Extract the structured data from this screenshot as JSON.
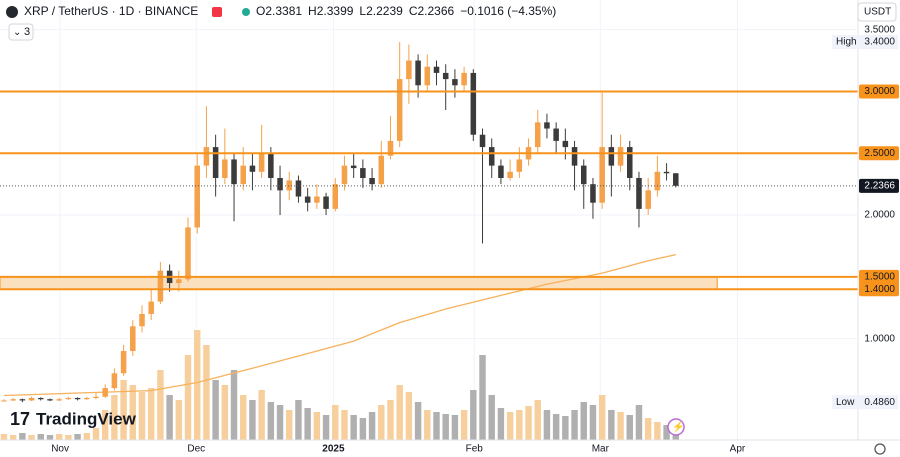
{
  "chart_data": {
    "type": "candlestick",
    "legend": {
      "symbol": "XRP / TetherUS · 1D · BINANCE",
      "fields": [
        {
          "label": "O",
          "value": "2.3381"
        },
        {
          "label": "H",
          "value": "2.3399"
        },
        {
          "label": "L",
          "value": "2.2239"
        },
        {
          "label": "C",
          "value": "2.2366"
        }
      ],
      "change": "−0.1016 (−4.35%)"
    },
    "currency": "USDT",
    "indicators_count": "3",
    "logo": "TradingView",
    "xlim": [
      -0.43,
      92.8
    ],
    "xticks": [
      {
        "value": 6.1,
        "label": "Nov"
      },
      {
        "value": 20.9,
        "label": "Dec"
      },
      {
        "value": 35.8,
        "label": "2025"
      },
      {
        "value": 51.1,
        "label": "Feb"
      },
      {
        "value": 64.8,
        "label": "Mar"
      },
      {
        "value": 79.7,
        "label": "Apr"
      }
    ],
    "ylim": [
      0.18,
      3.74
    ],
    "yticks": [
      {
        "value": 3.5,
        "label": "3.5000"
      },
      {
        "value": 2.0,
        "label": "2.0000"
      },
      {
        "value": 1.0,
        "label": "1.0000"
      }
    ],
    "up_color": "#f5a14a",
    "down_color": "#3b3b3b",
    "volume_up_color": "#f7cf9c",
    "volume_down_color": "#b0b0b0",
    "open": [
      0.5,
      0.5,
      0.51,
      0.5,
      0.52,
      0.51,
      0.5,
      0.51,
      0.52,
      0.51,
      0.52,
      0.53,
      0.6,
      0.72,
      0.9,
      1.1,
      1.2,
      1.3,
      1.55,
      1.45,
      1.48,
      1.9,
      2.4,
      2.55,
      2.3,
      2.45,
      2.25,
      2.4,
      2.35,
      2.5,
      2.3,
      2.2,
      2.28,
      2.15,
      2.1,
      2.15,
      2.05,
      2.25,
      2.4,
      2.38,
      2.3,
      2.25,
      2.48,
      2.6,
      3.1,
      3.25,
      3.05,
      3.2,
      3.15,
      3.1,
      3.05,
      3.15,
      2.65,
      2.55,
      2.4,
      2.3,
      2.35,
      2.45,
      2.55,
      2.75,
      2.7,
      2.6,
      2.55,
      2.4,
      2.25,
      2.1,
      2.55,
      2.4,
      2.55,
      2.3,
      2.05,
      2.2,
      2.35,
      2.3381
    ],
    "high": [
      0.51,
      0.52,
      0.515,
      0.53,
      0.525,
      0.515,
      0.52,
      0.53,
      0.525,
      0.53,
      0.56,
      0.63,
      0.76,
      0.95,
      1.15,
      1.27,
      1.4,
      1.62,
      1.6,
      1.55,
      1.98,
      2.5,
      2.88,
      2.65,
      2.7,
      2.5,
      2.55,
      2.5,
      2.73,
      2.55,
      2.4,
      2.35,
      2.32,
      2.22,
      2.25,
      2.18,
      2.3,
      2.48,
      2.5,
      2.45,
      2.38,
      2.6,
      2.8,
      3.4,
      3.38,
      3.3,
      3.3,
      3.25,
      3.22,
      3.18,
      3.2,
      3.18,
      2.7,
      2.62,
      2.45,
      2.45,
      2.55,
      2.62,
      2.85,
      2.82,
      2.75,
      2.7,
      2.6,
      2.45,
      2.3,
      2.99,
      2.65,
      2.65,
      2.6,
      2.35,
      2.3,
      2.48,
      2.42,
      2.3399
    ],
    "low": [
      0.49,
      0.495,
      0.486,
      0.495,
      0.5,
      0.495,
      0.495,
      0.505,
      0.5,
      0.505,
      0.51,
      0.52,
      0.58,
      0.7,
      0.86,
      1.05,
      1.15,
      1.28,
      1.38,
      1.38,
      1.46,
      1.85,
      2.3,
      2.15,
      2.25,
      1.95,
      2.2,
      2.2,
      2.3,
      2.2,
      2.0,
      2.12,
      2.1,
      2.03,
      2.05,
      2.0,
      2.03,
      2.2,
      2.3,
      2.22,
      2.2,
      2.22,
      2.45,
      2.55,
      2.9,
      2.95,
      3.0,
      3.05,
      2.85,
      2.95,
      3.0,
      2.6,
      1.77,
      2.3,
      2.25,
      2.28,
      2.3,
      2.4,
      2.5,
      2.62,
      2.5,
      2.45,
      2.2,
      2.05,
      1.97,
      2.05,
      2.15,
      2.35,
      2.2,
      1.9,
      2.0,
      2.15,
      2.28,
      2.2239
    ],
    "close": [
      0.5,
      0.51,
      0.5,
      0.52,
      0.51,
      0.5,
      0.51,
      0.52,
      0.51,
      0.52,
      0.53,
      0.6,
      0.72,
      0.9,
      1.1,
      1.2,
      1.3,
      1.55,
      1.45,
      1.48,
      1.9,
      2.4,
      2.55,
      2.3,
      2.45,
      2.25,
      2.4,
      2.35,
      2.5,
      2.3,
      2.2,
      2.28,
      2.15,
      2.1,
      2.15,
      2.05,
      2.25,
      2.4,
      2.38,
      2.3,
      2.25,
      2.48,
      2.6,
      3.1,
      3.25,
      3.05,
      3.2,
      3.15,
      3.1,
      3.05,
      3.15,
      2.65,
      2.55,
      2.4,
      2.3,
      2.35,
      2.45,
      2.55,
      2.75,
      2.7,
      2.6,
      2.55,
      2.4,
      2.25,
      2.1,
      2.55,
      2.4,
      2.55,
      2.3,
      2.05,
      2.2,
      2.35,
      2.3381,
      2.2366
    ],
    "volume": [
      6,
      5,
      7,
      5,
      6,
      5,
      6,
      5,
      6,
      7,
      12,
      30,
      45,
      60,
      55,
      48,
      52,
      70,
      45,
      40,
      85,
      110,
      95,
      60,
      55,
      70,
      45,
      40,
      50,
      38,
      35,
      30,
      40,
      32,
      28,
      25,
      35,
      30,
      25,
      22,
      28,
      35,
      40,
      55,
      48,
      38,
      30,
      28,
      26,
      25,
      30,
      50,
      85,
      45,
      32,
      28,
      30,
      34,
      40,
      30,
      26,
      24,
      30,
      38,
      35,
      45,
      30,
      28,
      25,
      35,
      22,
      18,
      15,
      10
    ],
    "ma": {
      "color": "#f7b15c",
      "x": [
        0,
        16,
        21,
        27,
        32,
        38,
        43,
        48,
        54,
        59,
        65,
        70,
        73
      ],
      "values": [
        0.54,
        0.58,
        0.645,
        0.76,
        0.86,
        0.98,
        1.13,
        1.24,
        1.35,
        1.44,
        1.53,
        1.63,
        1.68
      ]
    },
    "level_color": "#f7931a",
    "levels": [
      {
        "value": 3.0,
        "label": "3.0000"
      },
      {
        "value": 2.5,
        "label": "2.5000"
      },
      {
        "value": 1.5,
        "label": "1.5000"
      },
      {
        "value": 1.4,
        "label": "1.4000"
      }
    ],
    "zone": {
      "from": 1.4,
      "to": 1.5,
      "end": 77.5,
      "color": "#fbe0c0"
    },
    "last_price": {
      "value": 2.2366,
      "label": "2.2366"
    },
    "high_marker": {
      "label": "High",
      "value": 3.4,
      "value_label": "3.4000"
    },
    "low_marker": {
      "label": "Low",
      "value": 0.486,
      "value_label": "0.4860"
    }
  }
}
